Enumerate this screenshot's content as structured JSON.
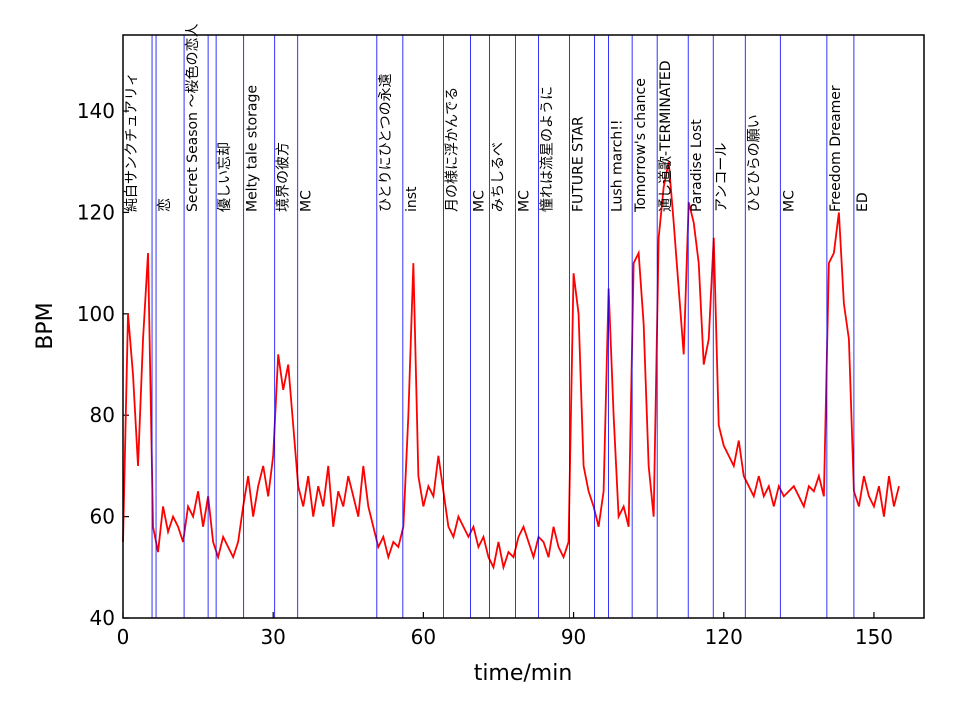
{
  "chart_data": {
    "type": "line",
    "xlabel": "time/min",
    "ylabel": "BPM",
    "xlim": [
      0,
      160
    ],
    "ylim": [
      40,
      155
    ],
    "xticks": [
      0,
      30,
      60,
      90,
      120,
      150
    ],
    "yticks": [
      40,
      60,
      80,
      100,
      120,
      140
    ],
    "line_color": "#ff0000",
    "marker_color": "#0000ff",
    "sections": [
      {
        "time": 0,
        "label": "純白サンクチュアリィ"
      },
      {
        "time": 6.6,
        "label": "恋"
      },
      {
        "time": 12.2,
        "label": "Secret Season ～桜色の恋人"
      },
      {
        "time": 18.6,
        "label": "優しい忘却"
      },
      {
        "time": 24.1,
        "label": "Melty tale storage"
      },
      {
        "time": 30.3,
        "label": "境界の彼方"
      },
      {
        "time": 34.9,
        "label": "MC"
      },
      {
        "time": 50.7,
        "label": "ひとりにひとつの永遠"
      },
      {
        "time": 55.9,
        "label": "inst"
      },
      {
        "time": 64.0,
        "label": "月の様に浮かんでる"
      },
      {
        "time": 69.4,
        "label": "MC"
      },
      {
        "time": 73.2,
        "label": "みちしるべ"
      },
      {
        "time": 78.4,
        "label": "MC"
      },
      {
        "time": 83.0,
        "label": "憧れは流星のように"
      },
      {
        "time": 89.2,
        "label": "FUTURE STAR"
      },
      {
        "time": 97.0,
        "label": "Lush march!!"
      },
      {
        "time": 101.7,
        "label": "Tomorrow's chance"
      },
      {
        "time": 106.7,
        "label": "通し道歌-TERMINATED"
      },
      {
        "time": 112.9,
        "label": "Paradise Lost"
      },
      {
        "time": 117.9,
        "label": "アンコール"
      },
      {
        "time": 124.3,
        "label": "ひとひらの願い"
      },
      {
        "time": 131.3,
        "label": "MC"
      },
      {
        "time": 140.6,
        "label": "Freedom Dreamer"
      },
      {
        "time": 146.0,
        "label": "ED"
      }
    ],
    "unlabeled_lines": [
      5.8,
      17.0,
      94.2
    ],
    "x": [
      0,
      1,
      2,
      3,
      4,
      5,
      6,
      7,
      8,
      9,
      10,
      11,
      12,
      13,
      14,
      15,
      16,
      17,
      18,
      19,
      20,
      21,
      22,
      23,
      24,
      25,
      26,
      27,
      28,
      29,
      30,
      31,
      32,
      33,
      34,
      35,
      36,
      37,
      38,
      39,
      40,
      41,
      42,
      43,
      44,
      45,
      46,
      47,
      48,
      49,
      50,
      51,
      52,
      53,
      54,
      55,
      56,
      57,
      58,
      59,
      60,
      61,
      62,
      63,
      64,
      65,
      66,
      67,
      68,
      69,
      70,
      71,
      72,
      73,
      74,
      75,
      76,
      77,
      78,
      79,
      80,
      81,
      82,
      83,
      84,
      85,
      86,
      87,
      88,
      89,
      90,
      91,
      92,
      93,
      94,
      95,
      96,
      97,
      98,
      99,
      100,
      101,
      102,
      103,
      104,
      105,
      106,
      107,
      108,
      109,
      110,
      111,
      112,
      113,
      114,
      115,
      116,
      117,
      118,
      119,
      120,
      121,
      122,
      123,
      124,
      125,
      126,
      127,
      128,
      129,
      130,
      131,
      132,
      133,
      134,
      135,
      136,
      137,
      138,
      139,
      140,
      141,
      142,
      143,
      144,
      145,
      146,
      147,
      148,
      149,
      150,
      151,
      152,
      153,
      154,
      155
    ],
    "values": [
      55,
      100,
      88,
      70,
      95,
      112,
      58,
      53,
      62,
      57,
      60,
      58,
      55,
      62,
      60,
      65,
      58,
      64,
      55,
      52,
      56,
      54,
      52,
      55,
      62,
      68,
      60,
      66,
      70,
      64,
      72,
      92,
      85,
      90,
      78,
      66,
      62,
      68,
      60,
      66,
      62,
      70,
      58,
      65,
      62,
      68,
      64,
      60,
      70,
      62,
      58,
      54,
      56,
      52,
      55,
      54,
      58,
      80,
      110,
      68,
      62,
      66,
      64,
      72,
      65,
      58,
      56,
      60,
      58,
      56,
      58,
      54,
      56,
      52,
      50,
      55,
      50,
      53,
      52,
      56,
      58,
      55,
      52,
      56,
      55,
      52,
      58,
      54,
      52,
      55,
      108,
      100,
      70,
      65,
      62,
      58,
      65,
      105,
      80,
      60,
      62,
      58,
      110,
      112,
      98,
      70,
      60,
      115,
      125,
      130,
      118,
      105,
      92,
      122,
      118,
      110,
      90,
      95,
      115,
      78,
      74,
      72,
      70,
      75,
      68,
      66,
      64,
      68,
      64,
      66,
      62,
      66,
      64,
      65,
      66,
      64,
      62,
      66,
      65,
      68,
      64,
      110,
      112,
      120,
      102,
      95,
      65,
      62,
      68,
      64,
      62,
      66,
      60,
      68,
      62,
      66
    ]
  }
}
